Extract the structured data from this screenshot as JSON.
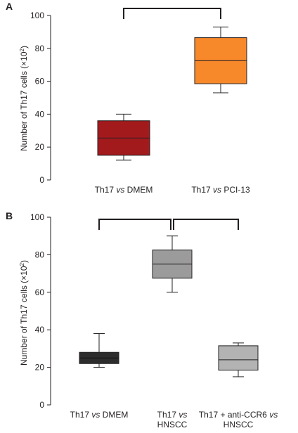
{
  "chart_data": [
    {
      "type": "box",
      "panel": "A",
      "ylabel": "Number of Th17 cells (×10²)",
      "ylabel_parts": [
        "Number of Th17 cells (×10",
        "2",
        ")"
      ],
      "ylim": [
        0,
        100
      ],
      "yticks": [
        "0",
        "20",
        "40",
        "60",
        "80",
        "100"
      ],
      "grid": false,
      "categories": [
        {
          "lines": [
            [
              "Th17 ",
              "vs",
              " DMEM"
            ]
          ]
        },
        {
          "lines": [
            [
              "Th17 ",
              "vs",
              " PCI-13"
            ]
          ]
        }
      ],
      "boxes": [
        {
          "min": 12,
          "q1": 15,
          "median": 25.5,
          "q3": 36,
          "max": 40,
          "color": "#a31a1d"
        },
        {
          "min": 53,
          "q1": 58.5,
          "median": 72.5,
          "q3": 86.5,
          "max": 93,
          "color": "#f7892b"
        }
      ],
      "brackets": [
        [
          0,
          1
        ]
      ]
    },
    {
      "type": "box",
      "panel": "B",
      "ylabel": "Number of Th17 cells (×10²)",
      "ylabel_parts": [
        "Number of Th17 cells (×10",
        "2",
        ")"
      ],
      "ylim": [
        0,
        100
      ],
      "yticks": [
        "0",
        "20",
        "40",
        "60",
        "80",
        "100"
      ],
      "grid": false,
      "categories": [
        {
          "lines": [
            [
              "Th17 ",
              "vs",
              " DMEM"
            ]
          ]
        },
        {
          "lines": [
            [
              "Th17 ",
              "vs",
              ""
            ],
            [
              "HNSCC"
            ]
          ]
        },
        {
          "lines": [
            [
              "Th17 + anti-CCR6 ",
              "vs",
              ""
            ],
            [
              "HNSCC"
            ]
          ]
        }
      ],
      "boxes": [
        {
          "min": 20,
          "q1": 22,
          "median": 25,
          "q3": 28,
          "max": 38,
          "color": "#2d2d2d"
        },
        {
          "min": 60,
          "q1": 67.5,
          "median": 75,
          "q3": 82.5,
          "max": 90,
          "color": "#9b9b9b"
        },
        {
          "min": 15,
          "q1": 18.5,
          "median": 24,
          "q3": 31.5,
          "max": 33,
          "color": "#b3b3b3"
        }
      ],
      "brackets": [
        [
          0,
          1
        ],
        [
          1,
          2
        ]
      ]
    }
  ]
}
